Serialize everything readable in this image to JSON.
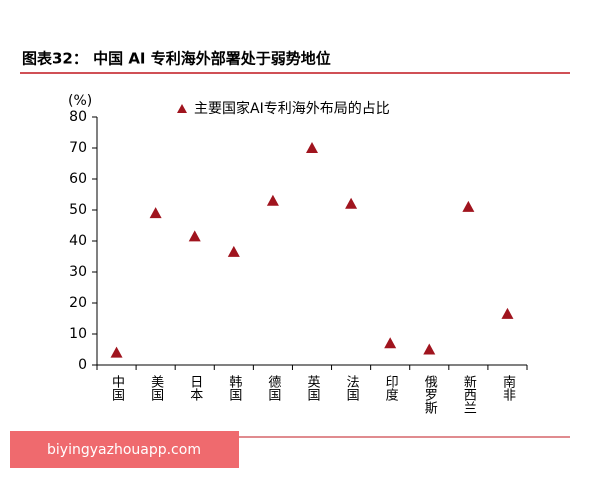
{
  "chart_data": {
    "type": "scatter",
    "title": "图表32：  中国 AI 专利海外部署处于弱势地位",
    "y_label": "(%)",
    "categories": [
      "中国",
      "美国",
      "日本",
      "韩国",
      "德国",
      "英国",
      "法国",
      "印度",
      "俄罗斯",
      "新西兰",
      "南非"
    ],
    "series": [
      {
        "name": "主要国家AI专利海外布局的占比",
        "color": "#a0141e",
        "values": [
          4,
          49,
          41.5,
          36.5,
          53,
          70,
          52,
          7,
          5,
          51,
          16.5
        ]
      }
    ],
    "ylim": [
      0,
      80
    ],
    "yticks": [
      0,
      10,
      20,
      30,
      40,
      50,
      60,
      70,
      80
    ]
  },
  "watermark": "biyingyazhouapp.com"
}
